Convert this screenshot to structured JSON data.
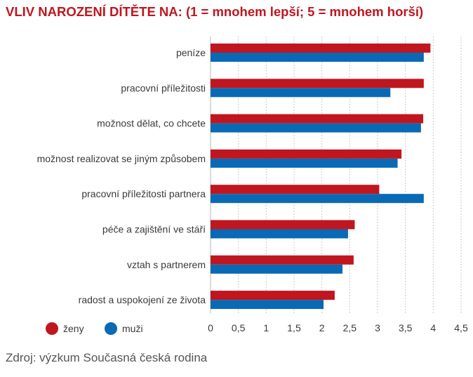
{
  "chart_data": {
    "type": "bar",
    "orientation": "horizontal",
    "title": "VLIV NAROZENÍ DÍTĚTE NA: (1 = mnohem lepší; 5 = mnohem horší)",
    "categories": [
      "peníze",
      "pracovní příležitosti",
      "možnost dělat, co chcete",
      "možnost realizovat se jiným způsobem",
      "pracovní příležitosti partnera",
      "péče a zajištění ve stáří",
      "vztah s partnerem",
      "radost a uspokojení ze života"
    ],
    "series": [
      {
        "name": "ženy",
        "color": "#c0161f",
        "values": [
          3.95,
          3.83,
          3.82,
          3.43,
          3.03,
          2.59,
          2.57,
          2.23
        ]
      },
      {
        "name": "muži",
        "color": "#0a69b4",
        "values": [
          3.83,
          3.23,
          3.78,
          3.36,
          3.83,
          2.47,
          2.37,
          2.03
        ]
      }
    ],
    "xlim": [
      0,
      4.5
    ],
    "xticks": [
      "0",
      "0,5",
      "1",
      "1,5",
      "2",
      "2,5",
      "3",
      "3,5",
      "4",
      "4,5"
    ],
    "grid": "vertical dashed",
    "legend": "bottom-left"
  },
  "source": "Zdroj: výzkum Současná česká rodina"
}
